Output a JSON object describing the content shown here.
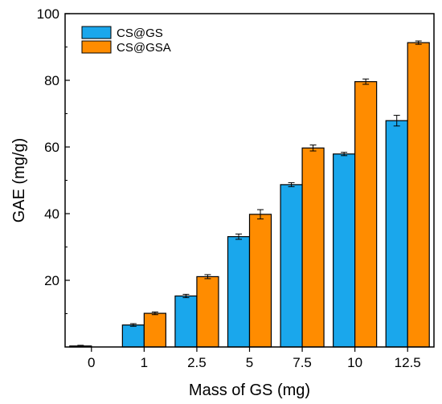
{
  "chart_data": {
    "type": "bar",
    "title": "",
    "xlabel": "Mass of GS (mg)",
    "ylabel": "GAE (mg/g)",
    "categories": [
      "0",
      "1",
      "2.5",
      "5",
      "7.5",
      "10",
      "12.5"
    ],
    "ylim": [
      0,
      100
    ],
    "yticks": [
      "20",
      "40",
      "60",
      "80",
      "100"
    ],
    "legend_position": "top-left",
    "grid": false,
    "series": [
      {
        "name": "CS@GS",
        "color": "#1aa7ec",
        "values": [
          0.3,
          6.6,
          15.3,
          33.1,
          48.7,
          57.9,
          67.9
        ],
        "errors": [
          0.2,
          0.4,
          0.5,
          0.8,
          0.6,
          0.5,
          1.6
        ]
      },
      {
        "name": "CS@GSA",
        "color": "#ff8c00",
        "values": [
          0,
          10.1,
          21.1,
          39.8,
          59.7,
          79.6,
          91.3
        ],
        "errors": [
          0,
          0.4,
          0.6,
          1.4,
          0.9,
          0.8,
          0.5
        ]
      }
    ]
  }
}
